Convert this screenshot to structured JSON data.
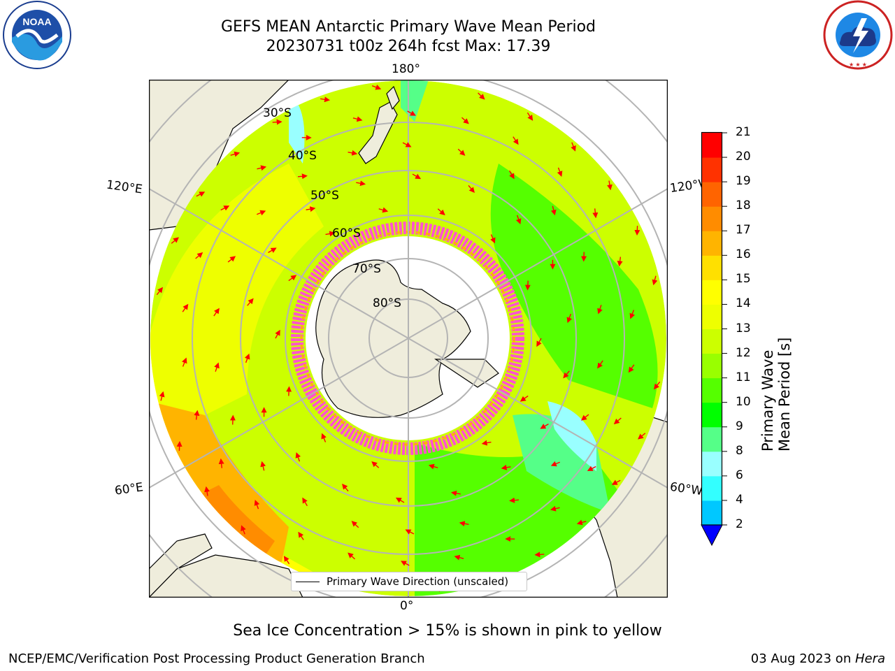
{
  "header": {
    "title_line1": "GEFS MEAN Antarctic Primary Wave Mean Period",
    "title_line2": "20230731 t00z 264h fcst   Max: 17.39"
  },
  "logos": {
    "left": {
      "name": "noaa-logo",
      "text": "NOAA",
      "ring_text": "NATIONAL OCEANIC AND ATMOSPHERIC ADMINISTRATION · U.S. DEPARTMENT OF COMMERCE"
    },
    "right": {
      "name": "nws-logo",
      "ring_text": "NATIONAL WEATHER SERVICE"
    }
  },
  "map": {
    "longitude_labels": {
      "top": "180°",
      "bottom": "0°",
      "upper_left": "120°E",
      "upper_right": "120°W",
      "lower_left": "60°E",
      "lower_right": "60°W"
    },
    "latitude_labels": [
      "30°S",
      "40°S",
      "50°S",
      "60°S",
      "70°S",
      "80°S"
    ],
    "legend": {
      "label": "Primary Wave Direction (unscaled)"
    }
  },
  "colorbar": {
    "label": "Primary Wave Mean Period [s]",
    "ticks": [
      "2",
      "4",
      "6",
      "8",
      "9",
      "10",
      "11",
      "12",
      "13",
      "14",
      "15",
      "16",
      "17",
      "18",
      "19",
      "20",
      "21"
    ],
    "colors": [
      "#0066ff",
      "#00c8ff",
      "#33ffff",
      "#99ffff",
      "#55ff88",
      "#00ff00",
      "#55ff00",
      "#99ff00",
      "#ccff00",
      "#eeff00",
      "#ffff00",
      "#ffe000",
      "#ffb400",
      "#ff8c00",
      "#ff6400",
      "#ff3200",
      "#ff0000"
    ],
    "extend_color": "#0000ff"
  },
  "caption": "Sea Ice Concentration > 15% is shown in pink to yellow",
  "footer": {
    "left": "NCEP/EMC/Verification Post Processing Product Generation Branch",
    "right_date": "03 Aug 2023 on ",
    "right_machine": "Hera"
  }
}
